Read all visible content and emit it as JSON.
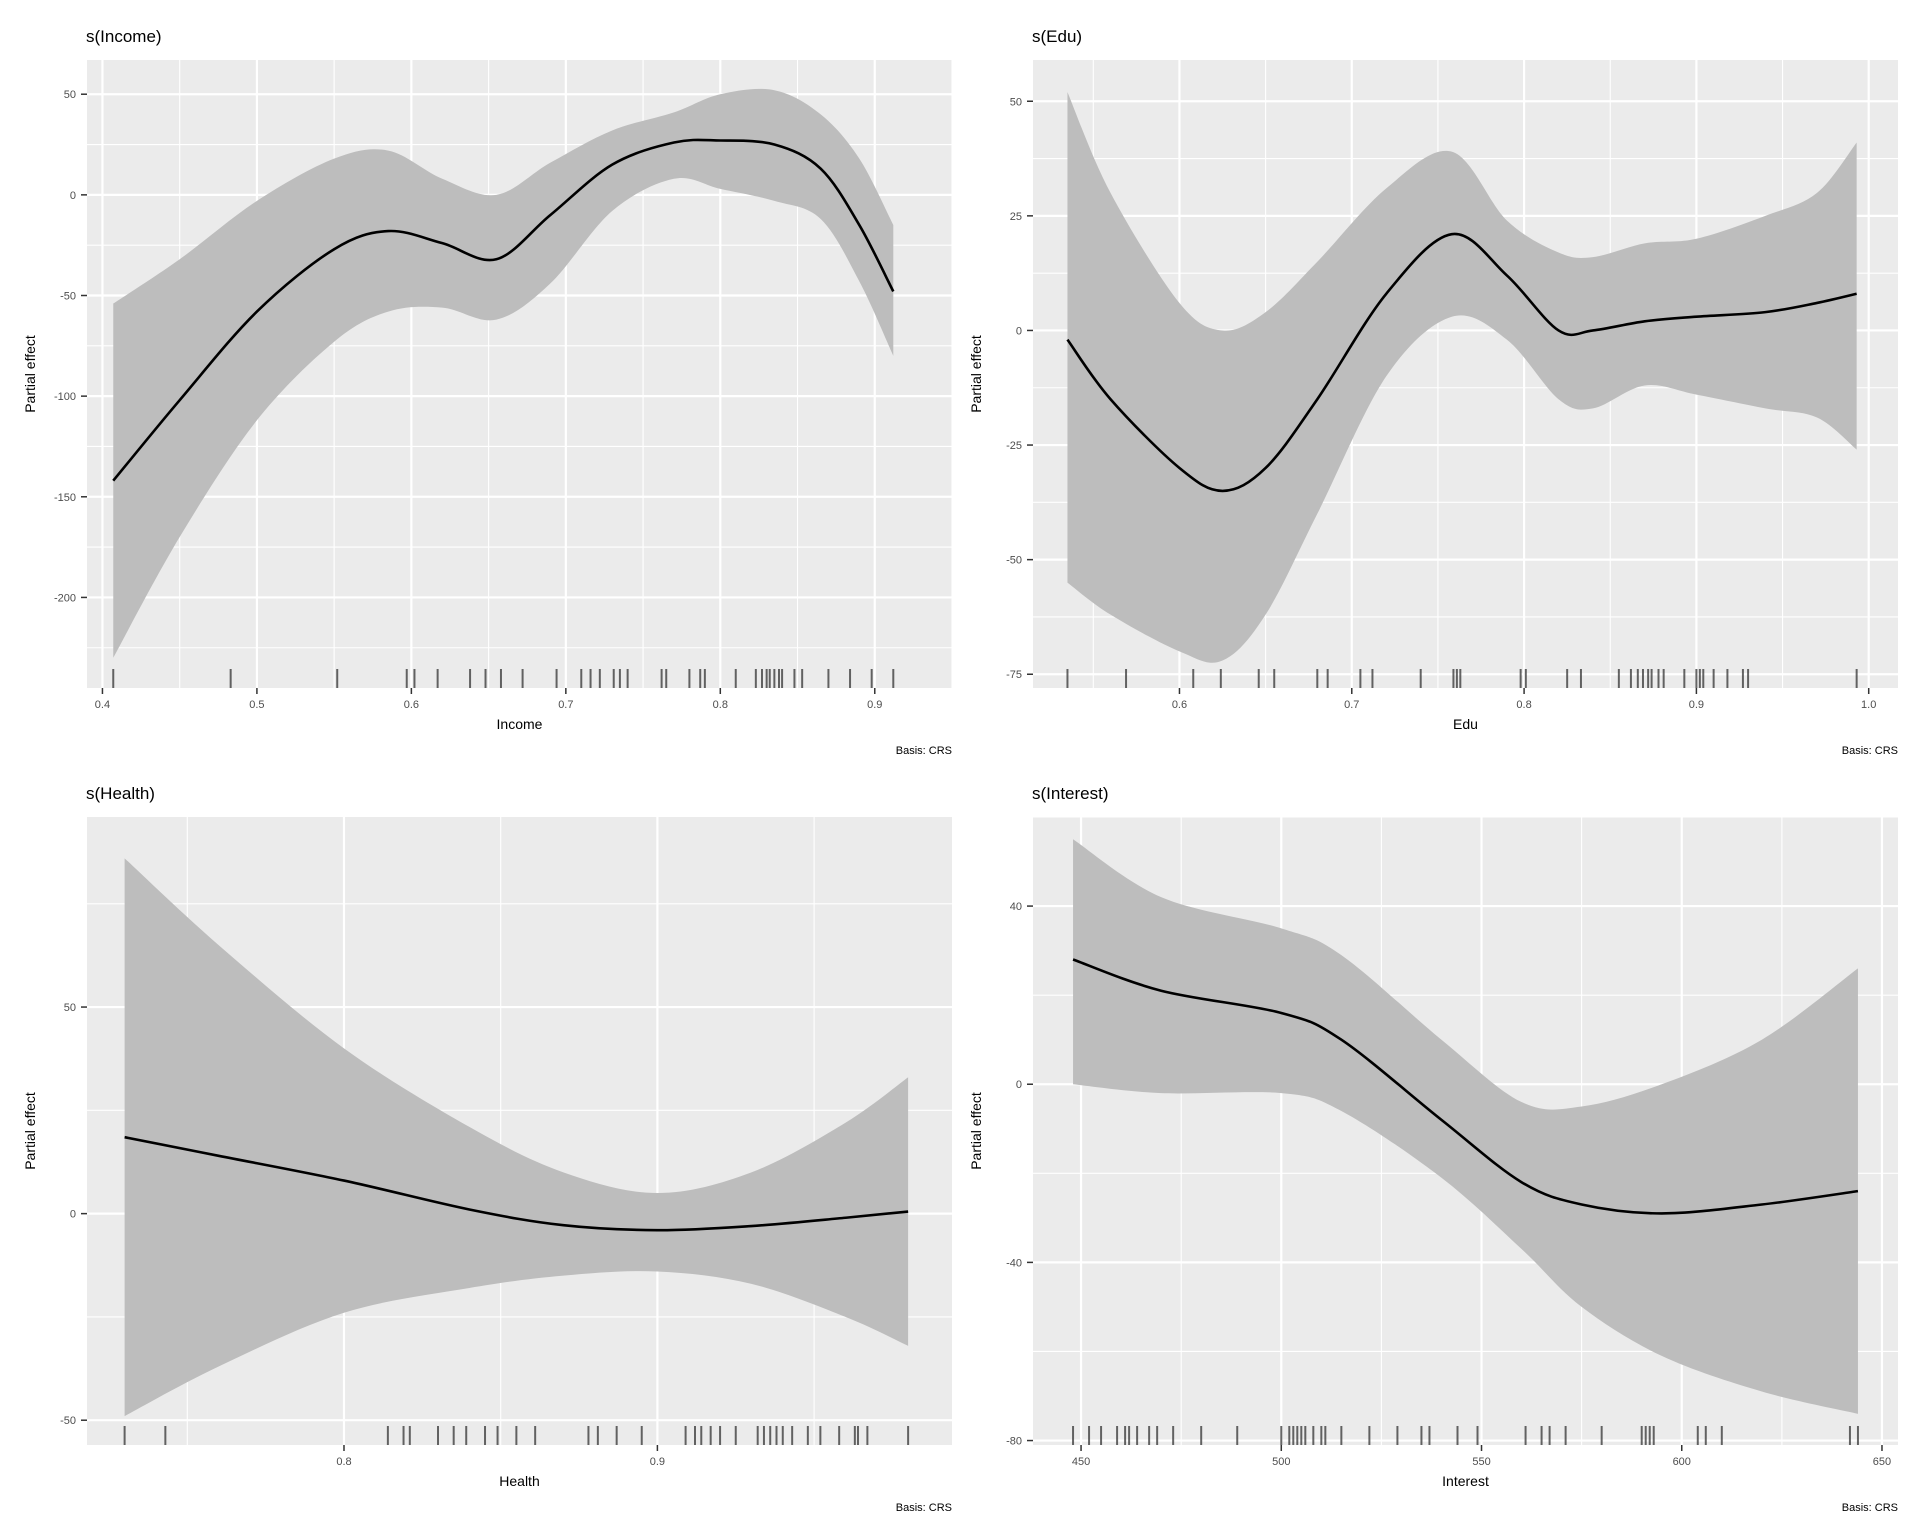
{
  "colors": {
    "panel_bg": "#ebebeb",
    "grid_major": "#ffffff",
    "band": "#bdbdbd",
    "line": "#000000",
    "rug": "#333333"
  },
  "chart_data": [
    {
      "type": "line",
      "title": "s(Income)",
      "xlabel": "Income",
      "ylabel": "Partial effect",
      "caption": "Basis: CRS",
      "grid": true,
      "xlim": [
        0.39,
        0.95
      ],
      "ylim": [
        -245,
        67
      ],
      "xticks": [
        0.4,
        0.5,
        0.6,
        0.7,
        0.8,
        0.9
      ],
      "xtick_labels": [
        "0.4",
        "0.5",
        "0.6",
        "0.7",
        "0.8",
        "0.9"
      ],
      "yticks": [
        -200,
        -150,
        -100,
        -50,
        0,
        50
      ],
      "ytick_labels": [
        "-200",
        "-150",
        "-100",
        "-50",
        "0",
        "50"
      ],
      "x": [
        0.407,
        0.45,
        0.5,
        0.55,
        0.585,
        0.62,
        0.655,
        0.69,
        0.73,
        0.77,
        0.8,
        0.835,
        0.865,
        0.89,
        0.912
      ],
      "fit": [
        -142,
        -102,
        -58,
        -27,
        -18,
        -24,
        -32,
        -10,
        15,
        26,
        27,
        25,
        13,
        -15,
        -48
      ],
      "lower": [
        -230,
        -170,
        -112,
        -73,
        -58,
        -56,
        -62,
        -44,
        -8,
        8,
        3,
        -3,
        -12,
        -43,
        -80
      ],
      "upper": [
        -54,
        -32,
        -3,
        18,
        22,
        8,
        0,
        16,
        32,
        41,
        50,
        52,
        40,
        18,
        -15
      ],
      "rug": [
        0.407,
        0.483,
        0.552,
        0.597,
        0.602,
        0.617,
        0.638,
        0.648,
        0.658,
        0.672,
        0.694,
        0.71,
        0.716,
        0.722,
        0.731,
        0.735,
        0.74,
        0.762,
        0.765,
        0.78,
        0.787,
        0.79,
        0.81,
        0.823,
        0.827,
        0.83,
        0.832,
        0.835,
        0.838,
        0.84,
        0.848,
        0.853,
        0.87,
        0.884,
        0.898,
        0.912
      ]
    },
    {
      "type": "line",
      "title": "s(Edu)",
      "xlabel": "Edu",
      "ylabel": "Partial effect",
      "caption": "Basis: CRS",
      "grid": true,
      "xlim": [
        0.515,
        1.017
      ],
      "ylim": [
        -78,
        59
      ],
      "xticks": [
        0.6,
        0.7,
        0.8,
        0.9,
        1.0
      ],
      "xtick_labels": [
        "0.6",
        "0.7",
        "0.8",
        "0.9",
        "1.0"
      ],
      "yticks": [
        -75,
        -50,
        -25,
        0,
        25,
        50
      ],
      "ytick_labels": [
        "-75",
        "-50",
        "-25",
        "0",
        "25",
        "50"
      ],
      "x": [
        0.535,
        0.56,
        0.6,
        0.625,
        0.65,
        0.68,
        0.72,
        0.758,
        0.79,
        0.82,
        0.84,
        0.87,
        0.9,
        0.94,
        0.97,
        0.993
      ],
      "fit": [
        -2,
        -15,
        -30,
        -35,
        -30,
        -15,
        8,
        21,
        12,
        0,
        0,
        2,
        3,
        4,
        6,
        8
      ],
      "lower": [
        -55,
        -62,
        -70,
        -72,
        -62,
        -40,
        -10,
        3,
        -2,
        -15,
        -17,
        -12,
        -14,
        -17,
        -19,
        -26
      ],
      "upper": [
        52,
        30,
        6,
        0,
        4,
        15,
        31,
        39,
        24,
        17,
        16,
        19,
        20,
        25,
        30,
        41
      ],
      "rug": [
        0.535,
        0.569,
        0.608,
        0.624,
        0.646,
        0.655,
        0.68,
        0.686,
        0.705,
        0.712,
        0.74,
        0.759,
        0.761,
        0.763,
        0.798,
        0.801,
        0.825,
        0.833,
        0.855,
        0.862,
        0.866,
        0.869,
        0.872,
        0.874,
        0.878,
        0.881,
        0.893,
        0.9,
        0.902,
        0.904,
        0.91,
        0.918,
        0.927,
        0.93,
        0.993
      ]
    },
    {
      "type": "line",
      "title": "s(Health)",
      "xlabel": "Health",
      "ylabel": "Partial effect",
      "caption": "Basis: CRS",
      "grid": true,
      "xlim": [
        0.718,
        0.994
      ],
      "ylim": [
        -56,
        96
      ],
      "xticks": [
        0.8,
        0.9
      ],
      "xtick_labels": [
        "0.8",
        "0.9"
      ],
      "yticks": [
        -50,
        0,
        50
      ],
      "ytick_labels": [
        "-50",
        "0",
        "50"
      ],
      "x": [
        0.73,
        0.76,
        0.8,
        0.84,
        0.87,
        0.9,
        0.93,
        0.96,
        0.98
      ],
      "fit": [
        18.5,
        14,
        8,
        1,
        -2.8,
        -4,
        -3,
        -1,
        0.5
      ],
      "lower": [
        -49,
        -37,
        -24,
        -18,
        -15,
        -14,
        -17,
        -25,
        -32
      ],
      "upper": [
        86,
        65,
        40,
        21,
        10,
        5,
        10,
        22,
        33
      ],
      "rug": [
        0.73,
        0.743,
        0.814,
        0.819,
        0.821,
        0.83,
        0.835,
        0.839,
        0.845,
        0.849,
        0.855,
        0.861,
        0.878,
        0.881,
        0.887,
        0.895,
        0.909,
        0.912,
        0.914,
        0.917,
        0.92,
        0.925,
        0.932,
        0.934,
        0.936,
        0.938,
        0.94,
        0.943,
        0.948,
        0.952,
        0.958,
        0.963,
        0.964,
        0.967,
        0.98
      ]
    },
    {
      "type": "line",
      "title": "s(Interest)",
      "xlabel": "Interest",
      "ylabel": "Partial effect",
      "caption": "Basis: CRS",
      "grid": true,
      "xlim": [
        438,
        654
      ],
      "ylim": [
        -81,
        60
      ],
      "xticks": [
        450,
        500,
        550,
        600,
        650
      ],
      "xtick_labels": [
        "450",
        "500",
        "550",
        "600",
        "650"
      ],
      "yticks": [
        -80,
        -40,
        0,
        40
      ],
      "ytick_labels": [
        "-80",
        "-40",
        "0",
        "40"
      ],
      "x": [
        448,
        470,
        500,
        515,
        540,
        560,
        575,
        595,
        620,
        644
      ],
      "fit": [
        28,
        21,
        16,
        10,
        -8,
        -22,
        -27,
        -29,
        -27,
        -24
      ],
      "lower": [
        0,
        -2,
        -2,
        -6,
        -21,
        -37,
        -50,
        -61,
        -69,
        -74
      ],
      "upper": [
        55,
        42,
        35,
        29,
        10,
        -4,
        -5,
        0,
        10,
        26
      ],
      "rug": [
        448,
        452,
        455,
        459,
        461,
        462,
        464,
        467,
        469,
        473,
        480,
        489,
        500,
        502,
        503,
        504,
        505,
        506,
        508,
        510,
        511,
        515,
        522,
        529,
        535,
        537,
        544,
        549,
        561,
        565,
        567,
        571,
        580,
        590,
        591,
        592,
        593,
        604,
        606,
        610,
        642,
        644
      ]
    }
  ]
}
